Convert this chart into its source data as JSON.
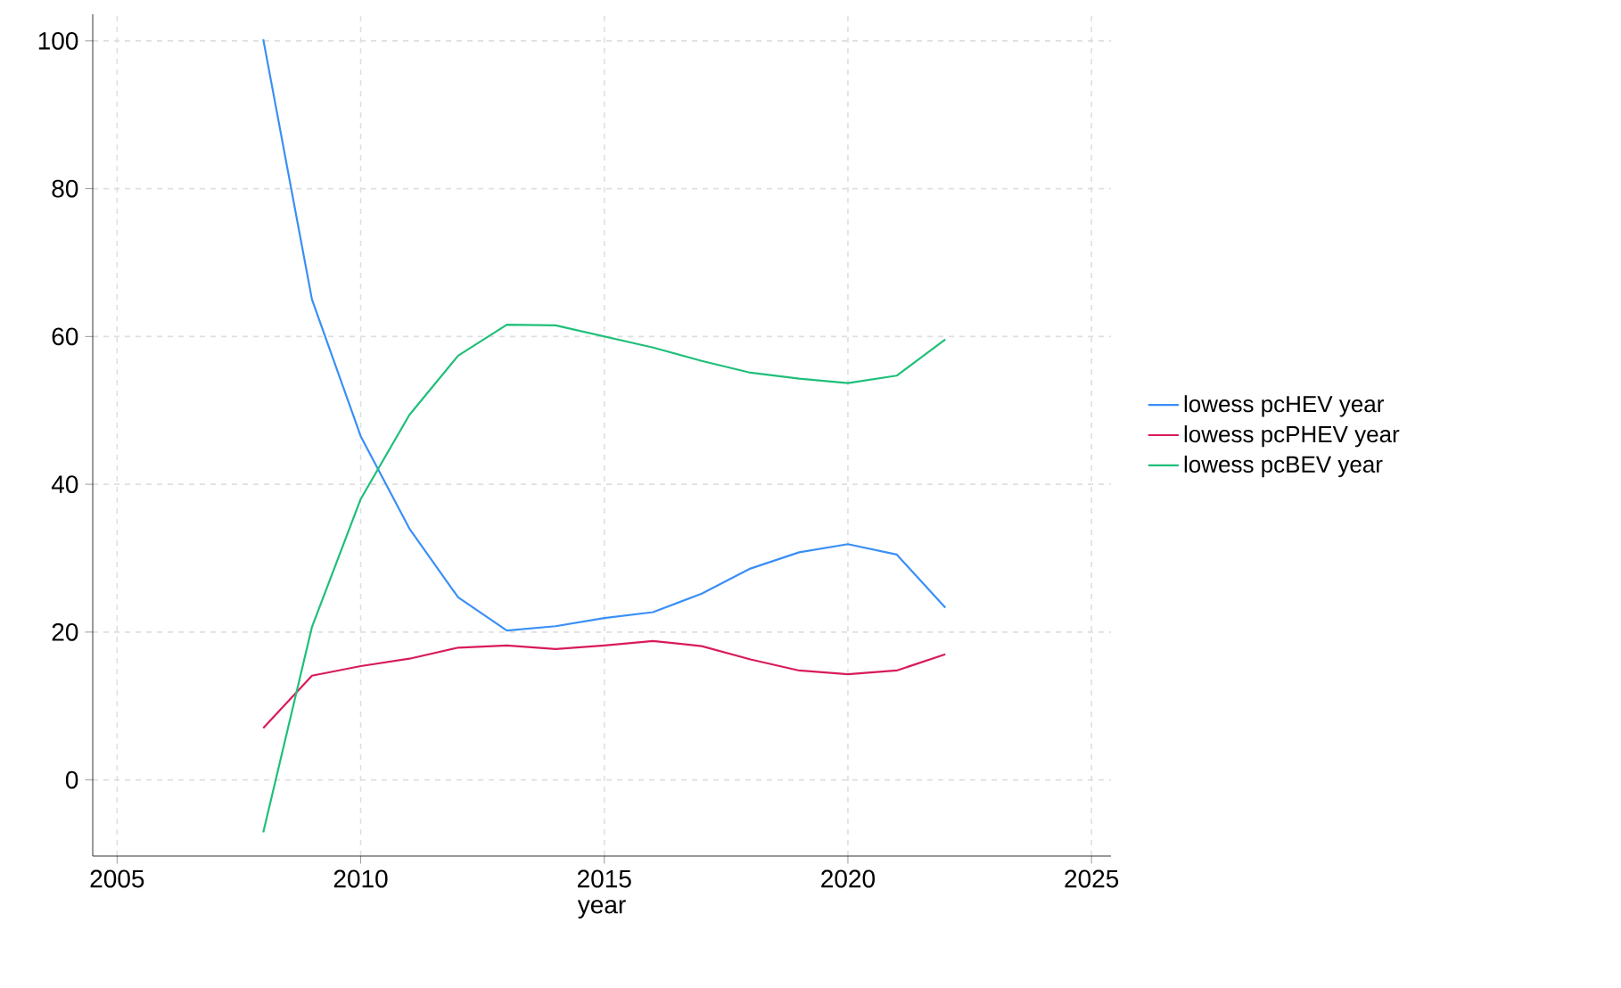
{
  "chart_data": {
    "type": "line",
    "xlabel": "year",
    "x": [
      2008,
      2009,
      2010,
      2011,
      2012,
      2013,
      2014,
      2015,
      2016,
      2017,
      2018,
      2019,
      2020,
      2021,
      2022
    ],
    "series": [
      {
        "name": "lowess pcHEV year",
        "color": "#3a8ff5",
        "values": [
          100.2,
          65,
          46.5,
          34,
          24.7,
          20.2,
          20.8,
          21.9,
          22.7,
          25.2,
          28.6,
          30.8,
          31.9,
          30.5,
          23.3
        ]
      },
      {
        "name": "lowess pcPHEV year",
        "color": "#d81b5a",
        "values": [
          7,
          14.1,
          15.4,
          16.4,
          17.9,
          18.2,
          17.7,
          18.2,
          18.8,
          18.1,
          16.3,
          14.8,
          14.3,
          14.8,
          17
        ]
      },
      {
        "name": "lowess pcBEV year",
        "color": "#1fbf7a",
        "values": [
          -7.1,
          20.7,
          38,
          49.4,
          57.4,
          61.6,
          61.5,
          60,
          58.5,
          56.7,
          55.1,
          54.3,
          53.7,
          54.7,
          59.6
        ]
      }
    ],
    "xlim": [
      2004.5,
      2025.4
    ],
    "ylim": [
      -10.3,
      103.6
    ],
    "xticks": [
      2005,
      2010,
      2015,
      2020,
      2025
    ],
    "yticks": [
      0,
      20,
      40,
      60,
      80,
      100
    ],
    "grid": true,
    "legend": "right",
    "marker": "none",
    "line_style": "solid"
  }
}
